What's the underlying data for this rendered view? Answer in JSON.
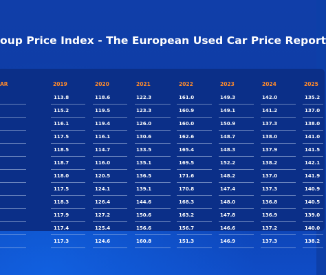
{
  "title": "oup Price Index - The European Used Car Price Report",
  "colors": {
    "background": "#0d3fa8",
    "panel": "#0b2f88",
    "header_text": "#ff8a2b",
    "text": "#ffffff"
  },
  "table": {
    "first_header": "AR",
    "columns": [
      "2019",
      "2020",
      "2021",
      "2022",
      "2023",
      "2024",
      "2025"
    ],
    "rows": [
      [
        "113.8",
        "118.6",
        "122.3",
        "161.0",
        "149.3",
        "142.0",
        "135.2"
      ],
      [
        "115.2",
        "119.5",
        "123.3",
        "160.9",
        "149.1",
        "141.2",
        "137.0"
      ],
      [
        "116.1",
        "119.4",
        "126.0",
        "160.0",
        "150.9",
        "137.3",
        "138.0"
      ],
      [
        "117.5",
        "116.1",
        "130.6",
        "162.6",
        "148.7",
        "138.0",
        "141.0"
      ],
      [
        "118.5",
        "114.7",
        "133.5",
        "165.4",
        "148.3",
        "137.9",
        "141.5"
      ],
      [
        "118.7",
        "116.0",
        "135.1",
        "169.5",
        "152.2",
        "138.2",
        "142.1"
      ],
      [
        "118.0",
        "120.5",
        "136.5",
        "171.6",
        "148.2",
        "137.0",
        "141.9"
      ],
      [
        "117.5",
        "124.1",
        "139.1",
        "170.8",
        "147.4",
        "137.3",
        "140.9"
      ],
      [
        "118.3",
        "126.4",
        "144.6",
        "168.3",
        "148.0",
        "136.8",
        "140.5"
      ],
      [
        "117.9",
        "127.2",
        "150.6",
        "163.2",
        "147.8",
        "136.9",
        "139.0"
      ],
      [
        "117.4",
        "125.4",
        "156.6",
        "156.7",
        "146.6",
        "137.2",
        "140.0"
      ],
      [
        "117.3",
        "124.6",
        "160.8",
        "151.3",
        "146.9",
        "137.3",
        "138.2"
      ]
    ]
  }
}
